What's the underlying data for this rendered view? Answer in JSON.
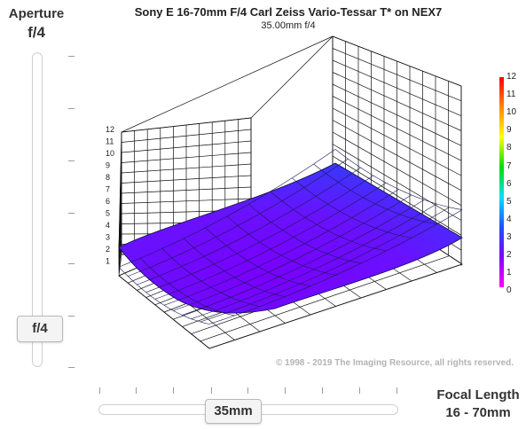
{
  "aperture": {
    "title": "Aperture",
    "value": "f/4",
    "thumb_label": "f/4"
  },
  "focal": {
    "title": "Focal Length",
    "range": "16 - 70mm",
    "thumb_label": "35mm"
  },
  "chart": {
    "title": "Sony E 16-70mm F/4 Carl Zeiss Vario-Tessar T* on NEX7",
    "subtitle": "35.00mm f/4",
    "copyright": "© 1998 - 2019 The Imaging Resource, all rights reserved."
  },
  "chart_data": {
    "type": "surface",
    "title": "Sony E 16-70mm F/4 Carl Zeiss Vario-Tessar T* on NEX7",
    "subtitle": "35.00mm f/4",
    "z_ticks": [
      "1",
      "2",
      "3",
      "4",
      "5",
      "6",
      "7",
      "8",
      "9",
      "10",
      "11",
      "12"
    ],
    "zlim": [
      0,
      12
    ],
    "color_scale_labels": [
      "12",
      "11",
      "10",
      "9",
      "8",
      "7",
      "6",
      "5",
      "4",
      "3",
      "2",
      "1",
      "0"
    ],
    "grid": true,
    "surface_corner_values": {
      "front_left": 2.9,
      "front_right": 2.6,
      "back_left": 3.0,
      "back_right": 3.9,
      "center_min": 0.5
    }
  },
  "colors": {
    "surface_low": "#6a00ff",
    "surface_mid": "#3a2cff",
    "grid_line": "#111111"
  }
}
